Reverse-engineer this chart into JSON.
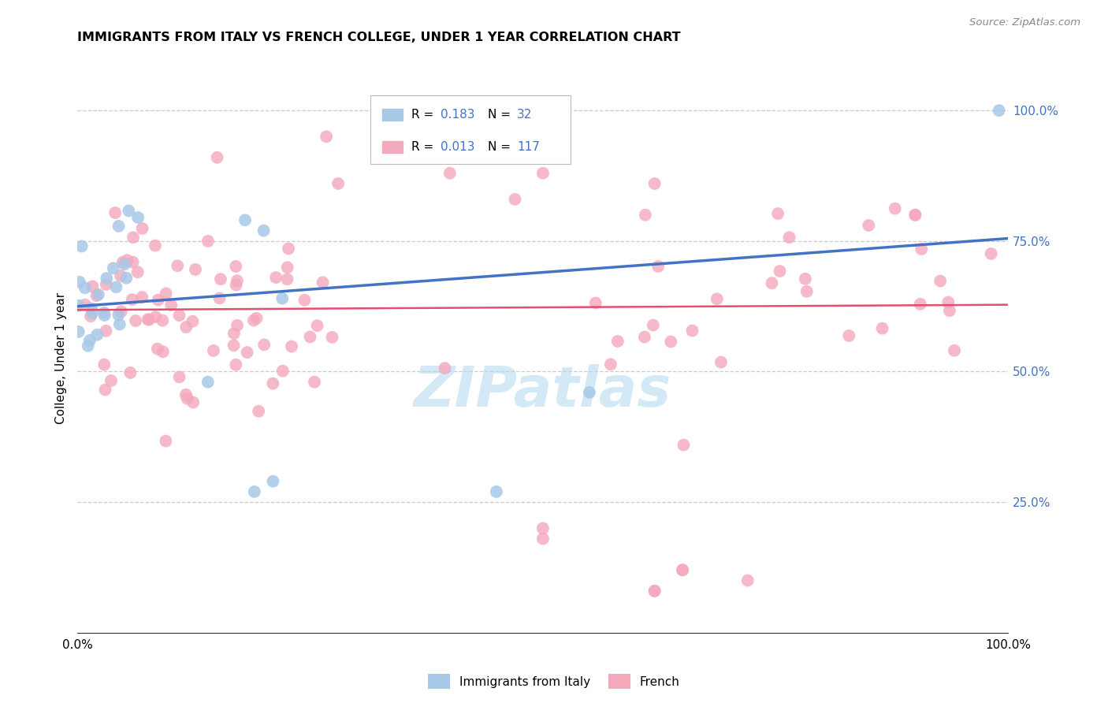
{
  "title": "IMMIGRANTS FROM ITALY VS FRENCH COLLEGE, UNDER 1 YEAR CORRELATION CHART",
  "source": "Source: ZipAtlas.com",
  "ylabel": "College, Under 1 year",
  "legend_label1": "Immigrants from Italy",
  "legend_label2": "French",
  "R1": 0.183,
  "N1": 32,
  "R2": 0.013,
  "N2": 117,
  "color_blue": "#a8c8e8",
  "color_pink": "#f4a8bc",
  "color_blue_line": "#4472c4",
  "color_pink_line": "#e05070",
  "color_legend_text": "#4472c4",
  "blue_line_x0": 0.0,
  "blue_line_y0": 0.625,
  "blue_line_x1": 1.0,
  "blue_line_y1": 0.755,
  "pink_line_x0": 0.0,
  "pink_line_y0": 0.618,
  "pink_line_x1": 1.0,
  "pink_line_y1": 0.628,
  "xlim": [
    0.0,
    1.0
  ],
  "ylim": [
    0.0,
    1.05
  ],
  "ytick_positions": [
    0.25,
    0.5,
    0.75,
    1.0
  ],
  "ytick_labels": [
    "25.0%",
    "50.0%",
    "75.0%",
    "100.0%"
  ],
  "watermark": "ZIPatlas",
  "watermark_color": "#b0d8f0",
  "note_legend_all_blue": true
}
